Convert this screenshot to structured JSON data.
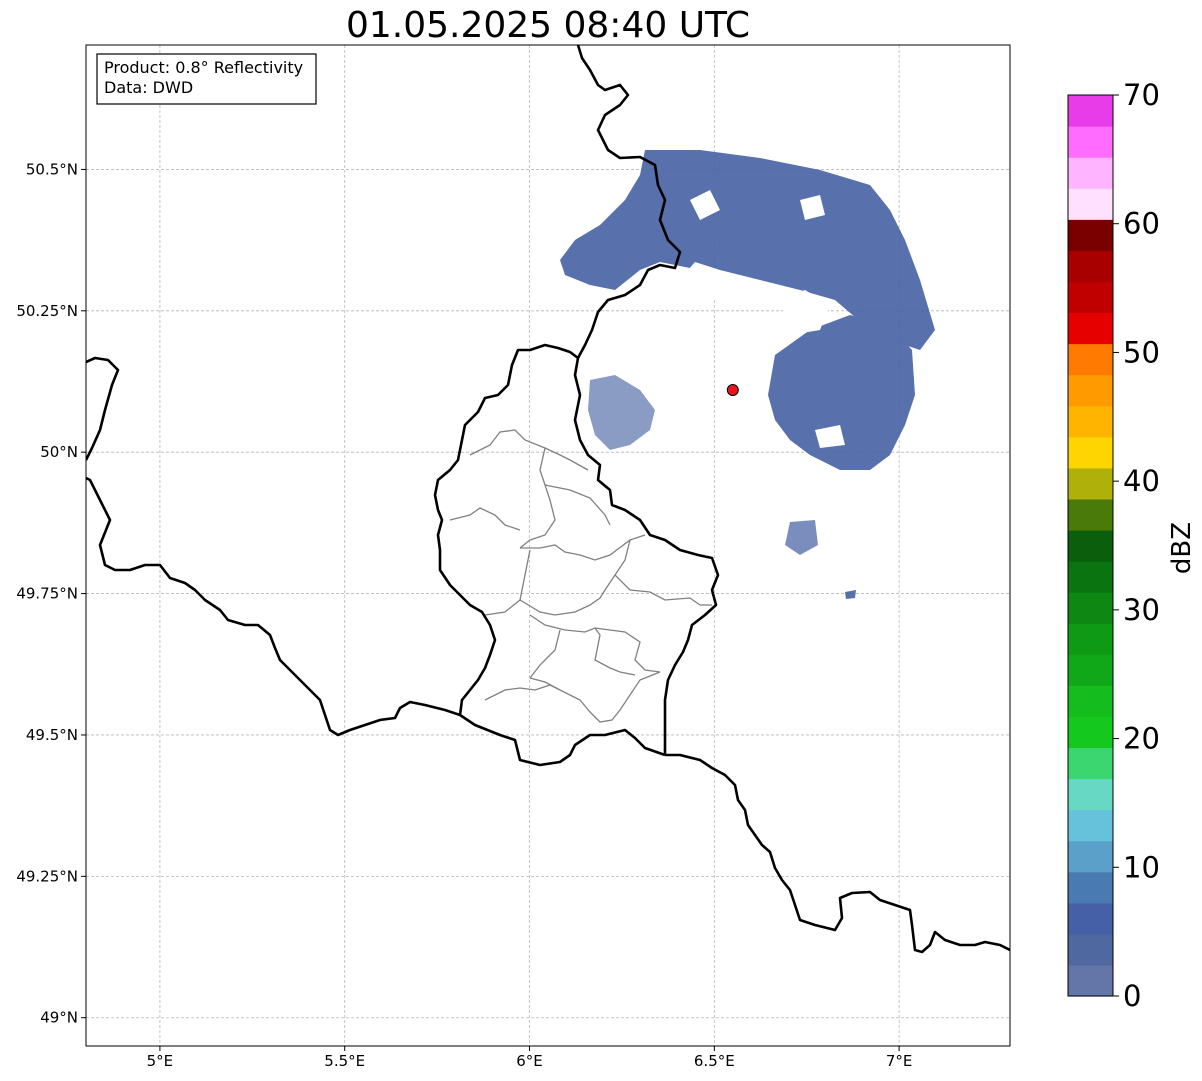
{
  "title": "01.05.2025 08:40 UTC",
  "info_box": {
    "product": "Product: 0.8° Reflectivity",
    "data": "Data: DWD"
  },
  "map": {
    "lon_range": [
      4.8,
      7.3
    ],
    "lat_range": [
      48.95,
      50.72
    ],
    "x_ticks": [
      {
        "value": 5.0,
        "label": "5°E"
      },
      {
        "value": 5.5,
        "label": "5.5°E"
      },
      {
        "value": 6.0,
        "label": "6°E"
      },
      {
        "value": 6.5,
        "label": "6.5°E"
      },
      {
        "value": 7.0,
        "label": "7°E"
      }
    ],
    "y_ticks": [
      {
        "value": 50.5,
        "label": "50.5°N"
      },
      {
        "value": 50.25,
        "label": "50.25°N"
      },
      {
        "value": 50.0,
        "label": "50°N"
      },
      {
        "value": 49.75,
        "label": "49.75°N"
      },
      {
        "value": 49.5,
        "label": "49.5°N"
      },
      {
        "value": 49.25,
        "label": "49.25°N"
      },
      {
        "value": 49.0,
        "label": "49°N"
      }
    ],
    "grid": true,
    "radar_site": {
      "lon": 6.55,
      "lat": 50.11,
      "color": "#e8141e"
    },
    "echo_color": "#4a64a4"
  },
  "colorbar": {
    "label": "dBZ",
    "min": 0,
    "max": 70,
    "tick_labels": [
      "0",
      "10",
      "20",
      "30",
      "40",
      "50",
      "60",
      "70"
    ],
    "colors": [
      "#6476a8",
      "#5068a0",
      "#4560a6",
      "#4a7ab2",
      "#5aa0c8",
      "#66c2da",
      "#66d8c4",
      "#3cd670",
      "#14c81e",
      "#14bc1e",
      "#10a818",
      "#0e9a14",
      "#0e8812",
      "#0a7410",
      "#0a5e0c",
      "#4a7a0a",
      "#b0b00a",
      "#ffd500",
      "#ffb400",
      "#ff9a00",
      "#ff7a00",
      "#e60000",
      "#c00000",
      "#a80000",
      "#7a0000",
      "#ffe0ff",
      "#ffb4ff",
      "#ff6cff",
      "#e83ce8"
    ]
  }
}
